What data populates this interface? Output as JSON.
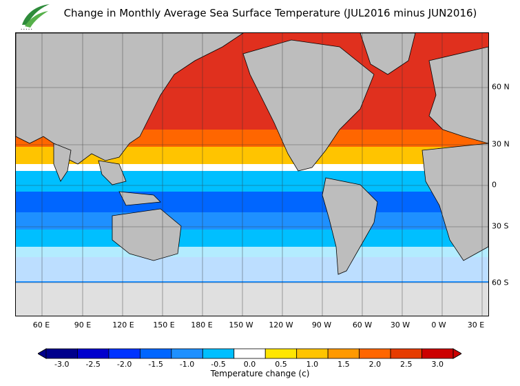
{
  "title": "Change in Monthly Average Sea Surface Temperature (JUL2016 minus JUN2016)",
  "longitude_labels": [
    "60 E",
    "90 E",
    "120 E",
    "150 E",
    "180 E",
    "150 W",
    "120 W",
    "90 W",
    "60 W",
    "30 W",
    "0 W",
    "30 E"
  ],
  "latitude_labels": [
    "60 N",
    "30 N",
    "0",
    "30 S",
    "60 S"
  ],
  "colorbar": {
    "title": "Temperature change  (c)",
    "ticks": [
      "-3.0",
      "-2.5",
      "-2.0",
      "-1.5",
      "-1.0",
      "-0.5",
      "0.0",
      "0.5",
      "1.0",
      "1.5",
      "2.0",
      "2.5",
      "3.0"
    ],
    "colors": [
      "#00008b",
      "#0000cd",
      "#0033ff",
      "#0066ff",
      "#1e90ff",
      "#00bfff",
      "#ffffff",
      "#ffe600",
      "#ffc400",
      "#ff9900",
      "#ff6600",
      "#e63c00",
      "#cc0000"
    ]
  },
  "colors": {
    "land": "#bdbdbd",
    "ice": "#e0e0e0",
    "warm": "#e0301e",
    "cool": "#1e90ff"
  }
}
